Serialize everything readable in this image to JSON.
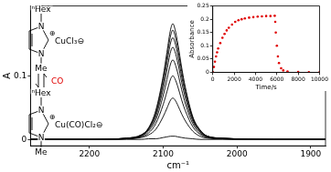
{
  "chart_data": [
    {
      "type": "line",
      "xlabel": "cm⁻¹",
      "ylabel": "A",
      "color": "#000000",
      "grid": false,
      "xlim": [
        2280,
        1880
      ],
      "xticks": [
        2200,
        2100,
        2000,
        1900
      ],
      "ylim": [
        -0.01,
        0.21
      ],
      "yticks": [
        0,
        0.1
      ],
      "annotations": [
        "ⁿHex",
        "N",
        "⊕",
        "N",
        "Me",
        "CuCl₃⊖",
        "CO",
        "ⁿHex",
        "N",
        "⊕",
        "N",
        "Me",
        "Cu(CO)Cl₂⊖"
      ],
      "x": [
        2280,
        2200,
        2150,
        2130,
        2120,
        2110,
        2100,
        2095,
        2090,
        2087,
        2084,
        2080,
        2075,
        2070,
        2060,
        2050,
        2040,
        2020,
        1950,
        1880
      ],
      "series": [
        {
          "values": [
            0,
            0,
            0,
            0,
            0.001,
            0.001,
            0.003,
            0.004,
            0.005,
            0.005,
            0.005,
            0.004,
            0.003,
            0.002,
            0.001,
            0,
            0,
            0,
            0,
            0
          ]
        },
        {
          "values": [
            0,
            0,
            0.001,
            0.003,
            0.007,
            0.016,
            0.036,
            0.049,
            0.062,
            0.065,
            0.062,
            0.053,
            0.04,
            0.029,
            0.013,
            0.005,
            0.002,
            0.001,
            0,
            0
          ]
        },
        {
          "values": [
            0,
            0,
            0.001,
            0.004,
            0.01,
            0.025,
            0.055,
            0.075,
            0.095,
            0.1,
            0.095,
            0.082,
            0.062,
            0.045,
            0.02,
            0.008,
            0.003,
            0.001,
            0,
            0
          ]
        },
        {
          "values": [
            0,
            0,
            0.001,
            0.005,
            0.013,
            0.031,
            0.069,
            0.094,
            0.119,
            0.125,
            0.119,
            0.103,
            0.078,
            0.056,
            0.025,
            0.01,
            0.004,
            0.001,
            0,
            0
          ]
        },
        {
          "values": [
            0,
            0,
            0.001,
            0.006,
            0.015,
            0.036,
            0.08,
            0.109,
            0.138,
            0.145,
            0.138,
            0.119,
            0.09,
            0.065,
            0.029,
            0.012,
            0.004,
            0.001,
            0,
            0
          ]
        },
        {
          "values": [
            0,
            0,
            0.002,
            0.006,
            0.016,
            0.04,
            0.088,
            0.12,
            0.152,
            0.16,
            0.152,
            0.131,
            0.099,
            0.072,
            0.032,
            0.013,
            0.005,
            0.002,
            0,
            0
          ]
        },
        {
          "values": [
            0,
            0,
            0.002,
            0.007,
            0.017,
            0.043,
            0.095,
            0.129,
            0.163,
            0.172,
            0.163,
            0.141,
            0.107,
            0.077,
            0.034,
            0.014,
            0.005,
            0.002,
            0,
            0
          ]
        },
        {
          "values": [
            0,
            0,
            0.002,
            0.007,
            0.018,
            0.046,
            0.1,
            0.137,
            0.173,
            0.182,
            0.173,
            0.149,
            0.113,
            0.082,
            0.036,
            0.015,
            0.005,
            0.002,
            0,
            0
          ]
        }
      ]
    },
    {
      "type": "scatter",
      "xlabel": "Time/s",
      "ylabel": "Absorbance",
      "color": "#e00000",
      "grid": false,
      "xlim": [
        0,
        10000
      ],
      "xticks": [
        0,
        2000,
        4000,
        6000,
        8000,
        10000
      ],
      "ylim": [
        0,
        0.25
      ],
      "yticks": [
        0,
        0.05,
        0.1,
        0.15,
        0.2,
        0.25
      ],
      "x": [
        0,
        100,
        200,
        300,
        400,
        500,
        700,
        900,
        1100,
        1300,
        1500,
        1800,
        2100,
        2400,
        2700,
        3000,
        3400,
        3800,
        4200,
        4600,
        5000,
        5400,
        5800,
        5850,
        5900,
        6000,
        6100,
        6200,
        6400,
        6600,
        7000,
        8000,
        9000,
        10000
      ],
      "values": [
        0,
        0.02,
        0.04,
        0.06,
        0.075,
        0.09,
        0.11,
        0.13,
        0.145,
        0.158,
        0.168,
        0.18,
        0.19,
        0.196,
        0.2,
        0.203,
        0.206,
        0.208,
        0.21,
        0.211,
        0.212,
        0.212,
        0.213,
        0.19,
        0.15,
        0.1,
        0.06,
        0.035,
        0.015,
        0.007,
        0.003,
        0.001,
        0,
        0
      ]
    }
  ]
}
